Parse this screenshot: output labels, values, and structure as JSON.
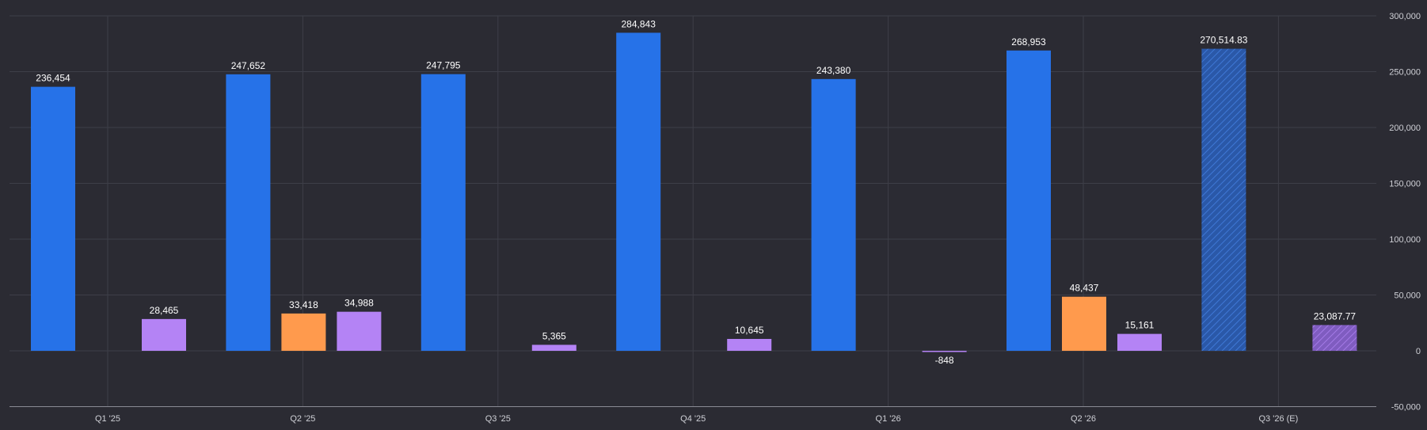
{
  "chart_data": {
    "type": "bar",
    "title": "",
    "xlabel": "",
    "ylabel": "",
    "ylim": [
      -50000,
      300000
    ],
    "y_ticks": [
      300000,
      250000,
      200000,
      150000,
      100000,
      50000,
      0,
      -50000
    ],
    "y_tick_labels": [
      "300,000",
      "250,000",
      "200,000",
      "150,000",
      "100,000",
      "50,000",
      "0",
      "-50,000"
    ],
    "grid": true,
    "legend": "none",
    "categories": [
      "Q1 '25",
      "Q2 '25",
      "Q3 '25",
      "Q4 '25",
      "Q1 '26",
      "Q2 '26",
      "Q3 '26 (E)"
    ],
    "estimated_category_index": 6,
    "series": [
      {
        "color": "#2672e8",
        "values": [
          236454,
          247652,
          247795,
          284843,
          243380,
          268953,
          270514.83
        ],
        "labels": [
          "236,454",
          "247,652",
          "247,795",
          "284,843",
          "243,380",
          "268,953",
          "270,514.83"
        ]
      },
      {
        "color": "#ff9a4d",
        "values": [
          null,
          33418,
          null,
          null,
          null,
          48437,
          null
        ],
        "labels": [
          "",
          "33,418",
          "",
          "",
          "",
          "48,437",
          ""
        ]
      },
      {
        "color": "#b483f5",
        "values": [
          28465,
          34988,
          5365,
          10645,
          -848,
          15161,
          23087.77
        ],
        "labels": [
          "28,465",
          "34,988",
          "5,365",
          "10,645",
          "-848",
          "15,161",
          "23,087.77"
        ]
      }
    ]
  }
}
